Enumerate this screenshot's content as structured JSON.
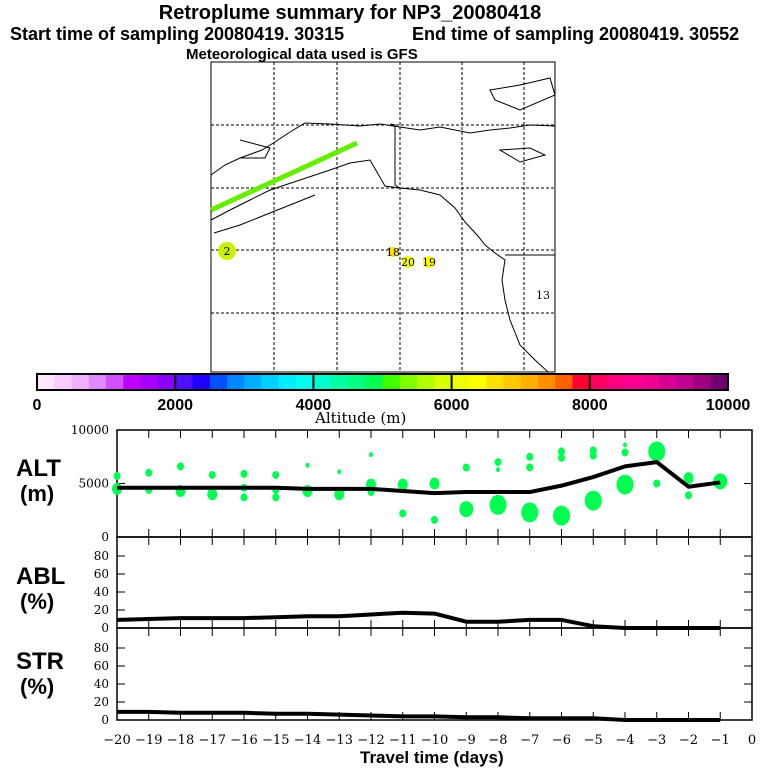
{
  "header": {
    "title": "Retroplume summary for NP3_20080418",
    "start": "Start time of sampling 20080419. 30315",
    "end": "End time of sampling 20080419. 30552",
    "met": "Meteorological data used is GFS"
  },
  "map": {
    "labels": [
      {
        "text": "2",
        "color": "#c8f000",
        "circle": true
      },
      {
        "text": "18",
        "color": "#ffe000",
        "circle": true
      },
      {
        "text": "20",
        "color": "#f0ff00",
        "circle": true
      },
      {
        "text": "19",
        "color": "#ffff00",
        "circle": true
      },
      {
        "text": "13",
        "color": "#ffff00",
        "circle": false
      }
    ],
    "plume_color": "#66ee00"
  },
  "colorbar": {
    "title": "Altitude (m)",
    "ticks": [
      "0",
      "2000",
      "4000",
      "6000",
      "8000",
      "10000"
    ],
    "colors": [
      "#ffe6ff",
      "#f8ccff",
      "#f0b0ff",
      "#e088ff",
      "#d050ff",
      "#c000ff",
      "#a800ff",
      "#8800ff",
      "#5010ff",
      "#2000ff",
      "#0050ff",
      "#0088ff",
      "#00b0ff",
      "#00d0ff",
      "#00eeff",
      "#00ffee",
      "#00ffcc",
      "#00ffa0",
      "#00ff80",
      "#00ff50",
      "#40ff00",
      "#80ff00",
      "#b0ff00",
      "#d8ff00",
      "#eeff00",
      "#ffff00",
      "#ffe000",
      "#ffc800",
      "#ffb000",
      "#ff9000",
      "#ff6000",
      "#ff0030",
      "#ff0060",
      "#ff0080",
      "#ff0090",
      "#f00090",
      "#d80090",
      "#c00090",
      "#a00080",
      "#700070"
    ]
  },
  "chart_data": [
    {
      "type": "line",
      "panel": "ALT",
      "ylabel": "ALT\n(m)",
      "ylabel_top": "ALT",
      "ylabel_bottom": "(m)",
      "ylim": [
        0,
        10000
      ],
      "yticks": [
        "10000",
        "5000",
        "0"
      ],
      "x": [
        -20,
        -19,
        -18,
        -17,
        -16,
        -15,
        -14,
        -13,
        -12,
        -11,
        -10,
        -9,
        -8,
        -7,
        -6,
        -5,
        -4,
        -3,
        -2,
        -1
      ],
      "values": [
        4600,
        4600,
        4600,
        4600,
        4600,
        4600,
        4500,
        4500,
        4500,
        4300,
        4100,
        4200,
        4200,
        4200,
        4800,
        5600,
        6600,
        7000,
        4700,
        5100
      ],
      "dots": [
        [
          -20,
          5700,
          2
        ],
        [
          -20,
          4500,
          3
        ],
        [
          -19,
          6000,
          2
        ],
        [
          -19,
          4400,
          2
        ],
        [
          -18,
          6600,
          2
        ],
        [
          -18,
          4300,
          3
        ],
        [
          -17,
          5800,
          2
        ],
        [
          -17,
          4000,
          3
        ],
        [
          -16,
          5900,
          2
        ],
        [
          -16,
          3700,
          2
        ],
        [
          -16,
          4600,
          2
        ],
        [
          -15,
          5800,
          2
        ],
        [
          -15,
          4400,
          2
        ],
        [
          -15,
          3700,
          2
        ],
        [
          -14,
          6700,
          1
        ],
        [
          -14,
          4300,
          3
        ],
        [
          -13,
          6100,
          1
        ],
        [
          -13,
          4000,
          3
        ],
        [
          -12,
          7700,
          1
        ],
        [
          -12,
          4900,
          3
        ],
        [
          -12,
          4200,
          2
        ],
        [
          -11,
          4900,
          3
        ],
        [
          -11,
          2200,
          2
        ],
        [
          -10,
          5000,
          3
        ],
        [
          -10,
          1600,
          2
        ],
        [
          -9,
          6500,
          2
        ],
        [
          -9,
          2600,
          4
        ],
        [
          -8,
          7000,
          2
        ],
        [
          -8,
          3000,
          5
        ],
        [
          -8,
          6300,
          1
        ],
        [
          -7,
          7500,
          2
        ],
        [
          -7,
          2300,
          5
        ],
        [
          -7,
          6500,
          2
        ],
        [
          -6,
          8000,
          2
        ],
        [
          -6,
          7400,
          2
        ],
        [
          -6,
          2000,
          5
        ],
        [
          -5,
          8100,
          2
        ],
        [
          -5,
          7600,
          2
        ],
        [
          -5,
          3400,
          5
        ],
        [
          -4,
          8600,
          1
        ],
        [
          -4,
          7900,
          2
        ],
        [
          -4,
          4900,
          5
        ],
        [
          -3,
          8000,
          5
        ],
        [
          -3,
          5000,
          2
        ],
        [
          -2,
          5500,
          3
        ],
        [
          -2,
          3900,
          2
        ],
        [
          -1,
          5200,
          4
        ]
      ]
    },
    {
      "type": "line",
      "panel": "ABL",
      "ylabel_top": "ABL",
      "ylabel_bottom": "(%)",
      "ylim": [
        0,
        100
      ],
      "yticks": [
        "80",
        "60",
        "40",
        "20",
        "0"
      ],
      "x": [
        -20,
        -19,
        -18,
        -17,
        -16,
        -15,
        -14,
        -13,
        -12,
        -11,
        -10,
        -9,
        -8,
        -7,
        -6,
        -5,
        -4,
        -3,
        -2,
        -1
      ],
      "values": [
        9,
        10,
        11,
        11,
        11,
        12,
        13,
        13,
        15,
        17,
        16,
        7,
        7,
        9,
        9,
        2,
        0,
        0,
        0,
        0
      ]
    },
    {
      "type": "line",
      "panel": "STR",
      "ylabel_top": "STR",
      "ylabel_bottom": "(%)",
      "ylim": [
        0,
        100
      ],
      "yticks": [
        "80",
        "60",
        "40",
        "20",
        "0"
      ],
      "x": [
        -20,
        -19,
        -18,
        -17,
        -16,
        -15,
        -14,
        -13,
        -12,
        -11,
        -10,
        -9,
        -8,
        -7,
        -6,
        -5,
        -4,
        -3,
        -2,
        -1
      ],
      "values": [
        9,
        9,
        8,
        8,
        8,
        7,
        7,
        6,
        5,
        4,
        4,
        3,
        3,
        2,
        2,
        2,
        0,
        0,
        0,
        0
      ],
      "xlabel": "Travel time (days)",
      "xticks": [
        "-20",
        "-19",
        "-18",
        "-17",
        "-16",
        "-15",
        "-14",
        "-13",
        "-12",
        "-11",
        "-10",
        "-9",
        "-8",
        "-7",
        "-6",
        "-5",
        "-4",
        "-3",
        "-2",
        "-1",
        "0"
      ]
    }
  ]
}
